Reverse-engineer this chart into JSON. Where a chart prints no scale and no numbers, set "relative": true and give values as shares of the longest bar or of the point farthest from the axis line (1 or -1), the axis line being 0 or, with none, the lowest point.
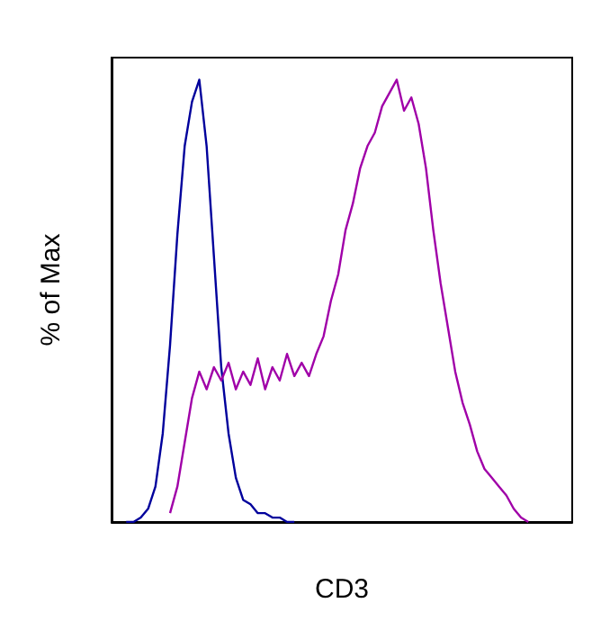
{
  "chart_data": {
    "type": "line",
    "xlabel": "CD3",
    "ylabel": "% of Max",
    "relative": true,
    "grid": false,
    "line_style": "solid",
    "categories": [
      null,
      null,
      null,
      null,
      null,
      null,
      null,
      null,
      null,
      null,
      null,
      null,
      null,
      null,
      null,
      null,
      null,
      null,
      null,
      null,
      null,
      null,
      null,
      null,
      null,
      null,
      null,
      null,
      null,
      null,
      null,
      null,
      null,
      null,
      null,
      null,
      null,
      null,
      null,
      null,
      null,
      null,
      null,
      null,
      null,
      null,
      null,
      null,
      null,
      null,
      null,
      null,
      null,
      null,
      null,
      null,
      null,
      null,
      null,
      null,
      null,
      null,
      null,
      null
    ],
    "series": [
      {
        "color": "#00009c",
        "values": [
          null,
          null,
          0,
          0,
          0.01,
          0.03,
          0.08,
          0.2,
          0.4,
          0.65,
          0.85,
          0.95,
          1,
          0.85,
          0.6,
          0.35,
          0.2,
          0.1,
          0.05,
          0.04,
          0.02,
          0.02,
          0.01,
          0.01,
          0,
          0,
          null,
          null,
          null,
          null,
          null,
          null,
          null,
          null,
          null,
          null,
          null,
          null,
          null,
          null,
          null,
          null,
          null,
          null,
          null,
          null,
          null,
          null,
          null,
          null,
          null,
          null,
          null,
          null,
          null,
          null,
          null,
          null,
          null,
          null,
          null,
          null,
          null,
          null
        ]
      },
      {
        "color": "#a000a8",
        "values": [
          null,
          null,
          null,
          null,
          null,
          null,
          null,
          null,
          0.02,
          0.08,
          0.18,
          0.28,
          0.34,
          0.3,
          0.35,
          0.32,
          0.36,
          0.3,
          0.34,
          0.31,
          0.37,
          0.3,
          0.35,
          0.32,
          0.38,
          0.33,
          0.36,
          0.33,
          0.38,
          0.42,
          0.5,
          0.56,
          0.66,
          0.72,
          0.8,
          0.85,
          0.88,
          0.94,
          0.97,
          1,
          0.93,
          0.96,
          0.9,
          0.8,
          0.66,
          0.54,
          0.44,
          0.34,
          0.27,
          0.22,
          0.16,
          0.12,
          0.1,
          0.08,
          0.06,
          0.03,
          0.01,
          0,
          null,
          null,
          null,
          null,
          null,
          null
        ]
      }
    ]
  }
}
